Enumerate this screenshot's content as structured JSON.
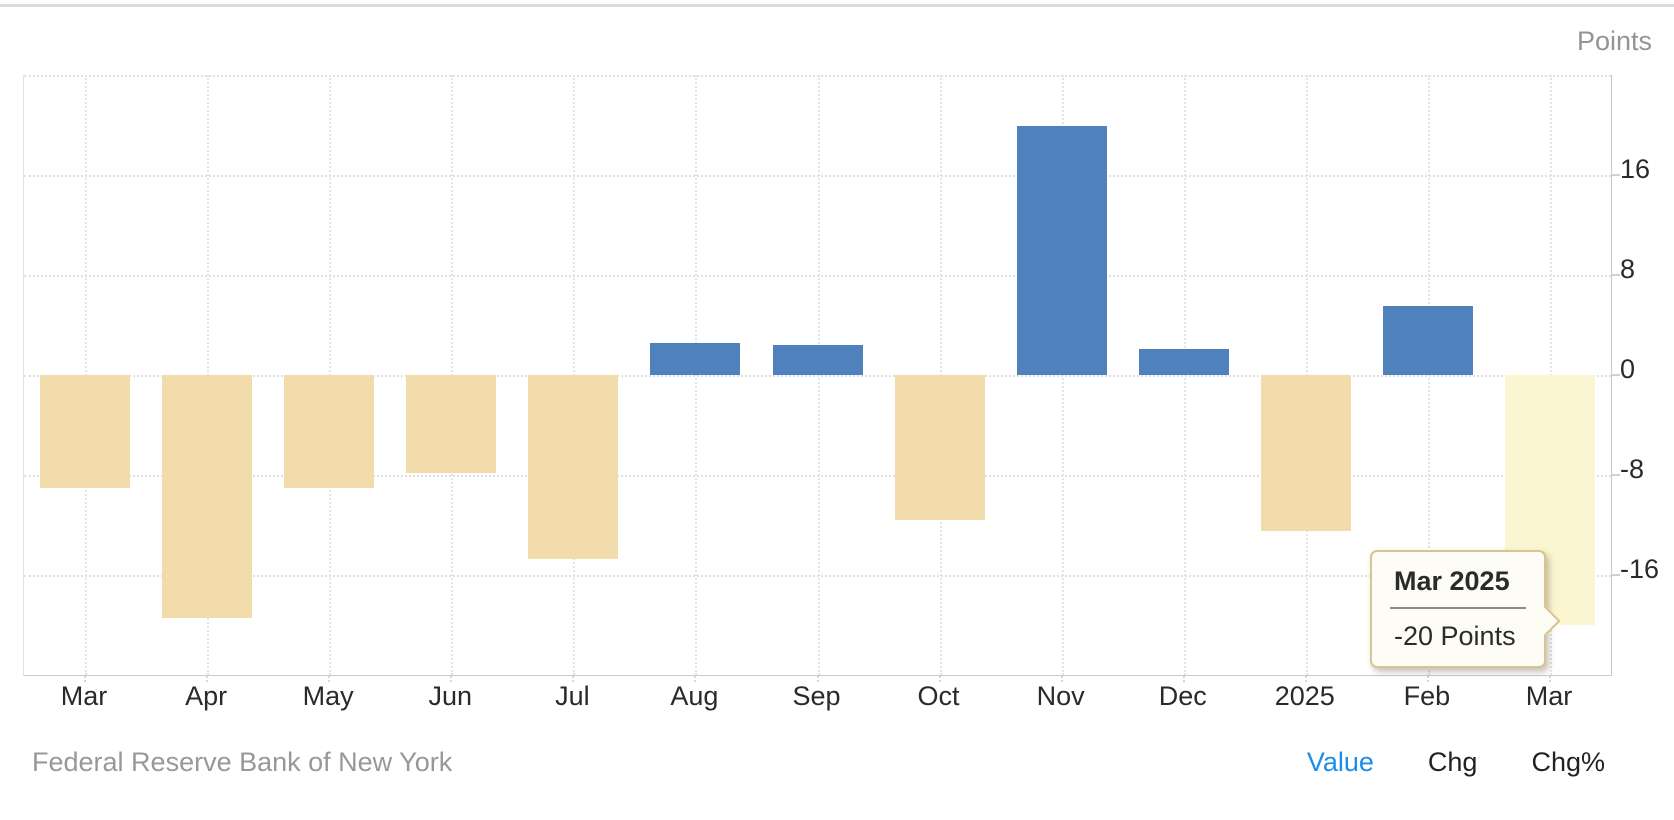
{
  "yaxis": {
    "title": "Points"
  },
  "tooltip": {
    "title": "Mar 2025",
    "value": "-20 Points"
  },
  "footer": {
    "source": "Federal Reserve Bank of New York",
    "links": [
      {
        "label": "Value",
        "active": true
      },
      {
        "label": "Chg",
        "active": false
      },
      {
        "label": "Chg%",
        "active": false
      }
    ]
  },
  "chart_data": {
    "type": "bar",
    "categories": [
      "Mar",
      "Apr",
      "May",
      "Jun",
      "Jul",
      "Aug",
      "Sep",
      "Oct",
      "Nov",
      "Dec",
      "2025",
      "Feb",
      "Mar"
    ],
    "values": [
      -9,
      -19.4,
      -9,
      -7.8,
      -14.7,
      2.6,
      2.4,
      -11.6,
      19.9,
      2.1,
      -12.5,
      5.5,
      -20
    ],
    "highlighted_index": 12,
    "highlighted_tooltip": {
      "title": "Mar 2025",
      "value": "-20 Points"
    },
    "title": "",
    "xlabel": "",
    "ylabel": "Points",
    "ylim": [
      -24,
      24
    ],
    "ytick_interval": 8,
    "ytick_labels": [
      16,
      8,
      0,
      -8,
      -16
    ],
    "grid": "dotted",
    "legend": "none",
    "source": "Federal Reserve Bank of New York",
    "colors": {
      "positive_bar": "#4f81bd",
      "negative_bar": "#f2dcab",
      "highlight_bar": "#fbf5d2",
      "grid": "#e0e0e0",
      "axis": "#c9c9c9",
      "label_dark": "#2a2a2a",
      "label_gray": "#949494",
      "link_active": "#1c8de8",
      "link_inactive": "#222222",
      "tooltip_bg": "#fdfcf5",
      "tooltip_border": "#d8c48e"
    }
  }
}
